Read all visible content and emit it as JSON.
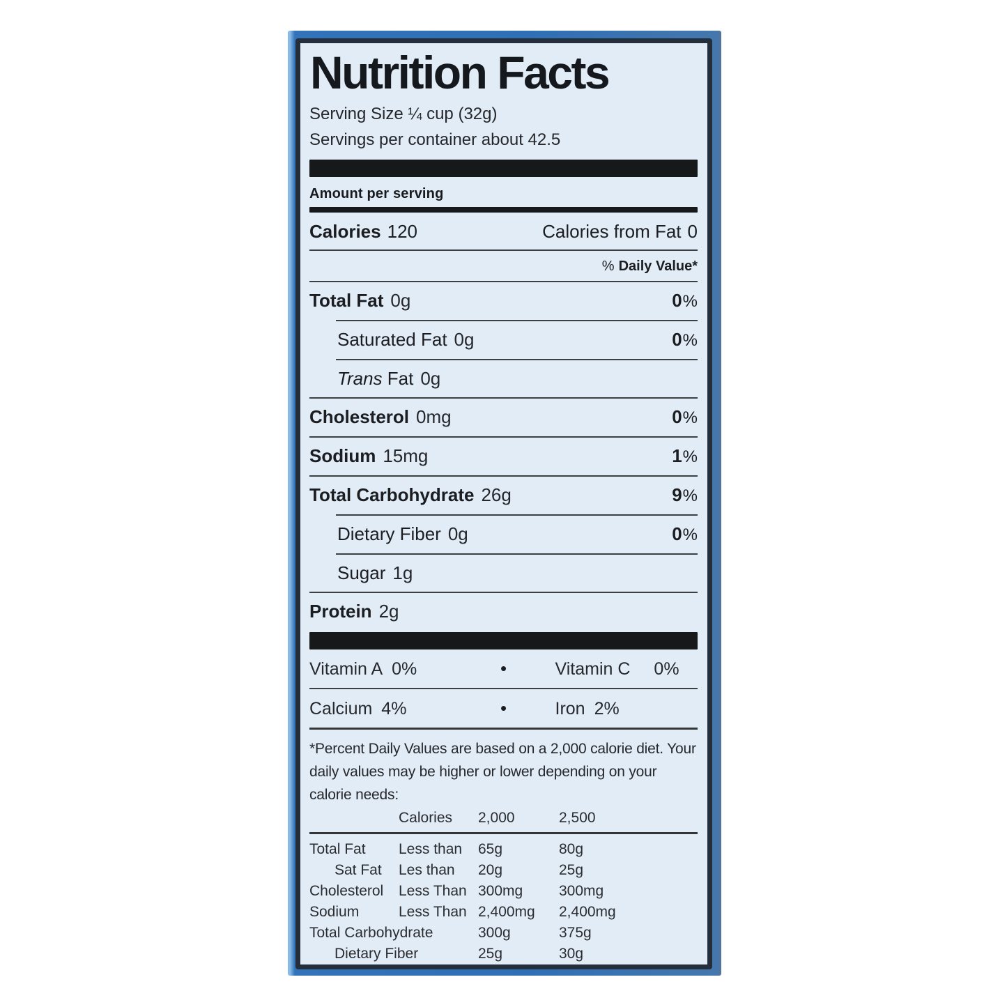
{
  "colors": {
    "package_blue": "#3273BA",
    "label_background": "#E2ECF7",
    "label_border": "#242F3B",
    "text_dark": "#1B1D20",
    "rule_gray": "#3C3E40"
  },
  "label": {
    "title": "Nutrition Facts",
    "serving_size": "Serving Size ¼ cup (32g)",
    "servings_per_container": "Servings per container about 42.5",
    "amount_per_serving": "Amount per serving",
    "calories": {
      "label": "Calories",
      "value": "120",
      "from_fat_label": "Calories from Fat",
      "from_fat_value": "0"
    },
    "daily_value_header": {
      "prefix": "%",
      "text": "Daily Value*"
    },
    "nutrients": [
      {
        "name": "Total Fat",
        "amount": "0g",
        "dv_value": "0",
        "dv_unit": "%"
      },
      {
        "name": "Saturated Fat",
        "amount": "0g",
        "dv_value": "0",
        "dv_unit": "%"
      },
      {
        "name_italic": "Trans",
        "name_rest": "Fat",
        "amount": "0g"
      },
      {
        "name": "Cholesterol",
        "amount": "0mg",
        "dv_value": "0",
        "dv_unit": "%"
      },
      {
        "name": "Sodium",
        "amount": "15mg",
        "dv_value": "1",
        "dv_unit": "%"
      },
      {
        "name": "Total Carbohydrate",
        "amount": "26g",
        "dv_value": "9",
        "dv_unit": "%"
      },
      {
        "name": "Dietary Fiber",
        "amount": "0g",
        "dv_value": "0",
        "dv_unit": "%"
      },
      {
        "name": "Sugar",
        "amount": "1g"
      },
      {
        "name": "Protein",
        "amount": "2g"
      }
    ],
    "micronutrients": {
      "row1": {
        "left_name": "Vitamin A",
        "left_value": "0%",
        "bullet": "•",
        "right_name": "Vitamin C",
        "right_value": "0%"
      },
      "row2": {
        "left_name": "Calcium",
        "left_value": "4%",
        "bullet": "•",
        "right_name": "Iron",
        "right_value": "2%"
      }
    },
    "footnote": "*Percent Daily Values are based on a 2,000 calorie diet. Your daily values may be higher or lower depending on your calorie needs:",
    "dv_table": {
      "header": {
        "label": "Calories",
        "col_2000": "2,000",
        "col_2500": "2,500"
      },
      "rows": [
        {
          "name": "Total Fat",
          "qualifier": "Less than",
          "v2000": "65g",
          "v2500": "80g"
        },
        {
          "name": "Sat Fat",
          "qualifier": "Les than",
          "v2000": "20g",
          "v2500": "25g"
        },
        {
          "name": "Cholesterol",
          "qualifier": "Less Than",
          "v2000": "300mg",
          "v2500": "300mg"
        },
        {
          "name": "Sodium",
          "qualifier": "Less Than",
          "v2000": "2,400mg",
          "v2500": "2,400mg"
        },
        {
          "name": "Total Carbohydrate",
          "qualifier": "",
          "v2000": "300g",
          "v2500": "375g"
        },
        {
          "name": "Dietary Fiber",
          "qualifier": "",
          "v2000": "25g",
          "v2500": "30g"
        }
      ]
    }
  }
}
